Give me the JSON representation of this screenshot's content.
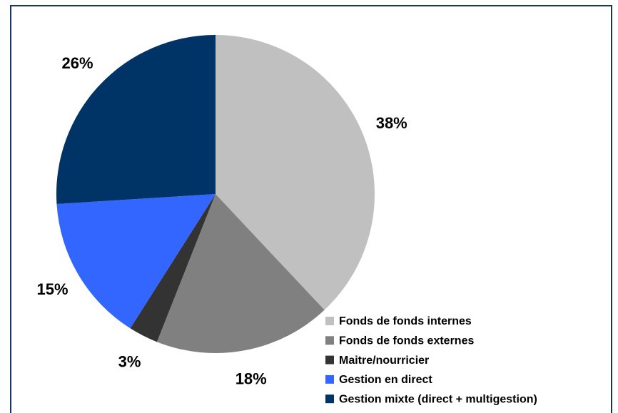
{
  "chart_data": {
    "type": "pie",
    "categories": [
      "Fonds de fonds internes",
      "Fonds de fonds externes",
      "Maitre/nourricier",
      "Gestion en direct",
      "Gestion mixte (direct + multigestion)"
    ],
    "values": [
      38,
      18,
      3,
      15,
      26
    ],
    "value_labels": [
      "38%",
      "18%",
      "3%",
      "15%",
      "26%"
    ],
    "colors": [
      "#c0c0c0",
      "#808080",
      "#333333",
      "#3366ff",
      "#003366"
    ],
    "legend": "lower right"
  }
}
